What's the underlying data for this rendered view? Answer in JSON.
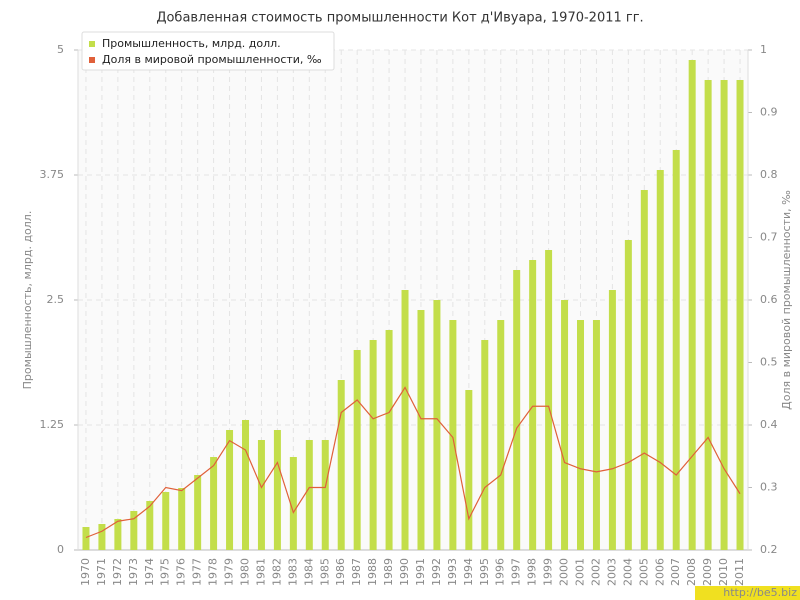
{
  "chart_data": {
    "type": "bar-line",
    "title": "Добавленная стоимость промышленности Кот д'Ивуара, 1970-2011 гг.",
    "y_label": "Промышленность, млрд. долл.",
    "y2_label": "Доля в мировой промышленности, ‰",
    "categories": [
      "1970",
      "1971",
      "1972",
      "1973",
      "1974",
      "1975",
      "1976",
      "1977",
      "1978",
      "1979",
      "1980",
      "1981",
      "1982",
      "1983",
      "1984",
      "1985",
      "1986",
      "1987",
      "1988",
      "1989",
      "1990",
      "1991",
      "1992",
      "1993",
      "1994",
      "1995",
      "1996",
      "1997",
      "1998",
      "1999",
      "2000",
      "2001",
      "2002",
      "2003",
      "2004",
      "2005",
      "2006",
      "2007",
      "2008",
      "2009",
      "2010",
      "2011"
    ],
    "series": [
      {
        "name": "Промышленность, млрд. долл.",
        "color": "#c3de4a",
        "type": "bar",
        "values": [
          0.23,
          0.26,
          0.31,
          0.39,
          0.49,
          0.58,
          0.62,
          0.75,
          0.93,
          1.2,
          1.3,
          1.1,
          1.2,
          0.93,
          1.1,
          1.1,
          1.7,
          2.0,
          2.1,
          2.2,
          2.6,
          2.4,
          2.5,
          2.3,
          1.6,
          2.1,
          2.3,
          2.8,
          2.9,
          3.0,
          2.5,
          2.3,
          2.3,
          2.6,
          3.1,
          3.6,
          3.8,
          4.0,
          4.9,
          4.7,
          4.7,
          4.7
        ]
      },
      {
        "name": "Доля в мировой промышленности, ‰",
        "color": "#e0603a",
        "type": "line",
        "axis": "y2",
        "values": [
          0.22,
          0.23,
          0.246,
          0.25,
          0.27,
          0.3,
          0.295,
          0.315,
          0.335,
          0.375,
          0.36,
          0.3,
          0.34,
          0.26,
          0.3,
          0.3,
          0.42,
          0.44,
          0.41,
          0.42,
          0.46,
          0.41,
          0.41,
          0.38,
          0.25,
          0.3,
          0.32,
          0.395,
          0.43,
          0.43,
          0.34,
          0.33,
          0.325,
          0.33,
          0.34,
          0.355,
          0.34,
          0.32,
          0.35,
          0.38,
          0.33,
          0.29
        ]
      }
    ],
    "ylim": [
      0,
      5
    ],
    "yticks": [
      0,
      1.25,
      2.5,
      3.75,
      5
    ],
    "y2lim": [
      0.2,
      1
    ],
    "y2ticks": [
      0.2,
      0.3,
      0.4,
      0.5,
      0.6,
      0.7,
      0.8,
      0.9,
      1
    ],
    "grid": true,
    "legend": "top-left",
    "watermark": "http://be5.biz"
  }
}
